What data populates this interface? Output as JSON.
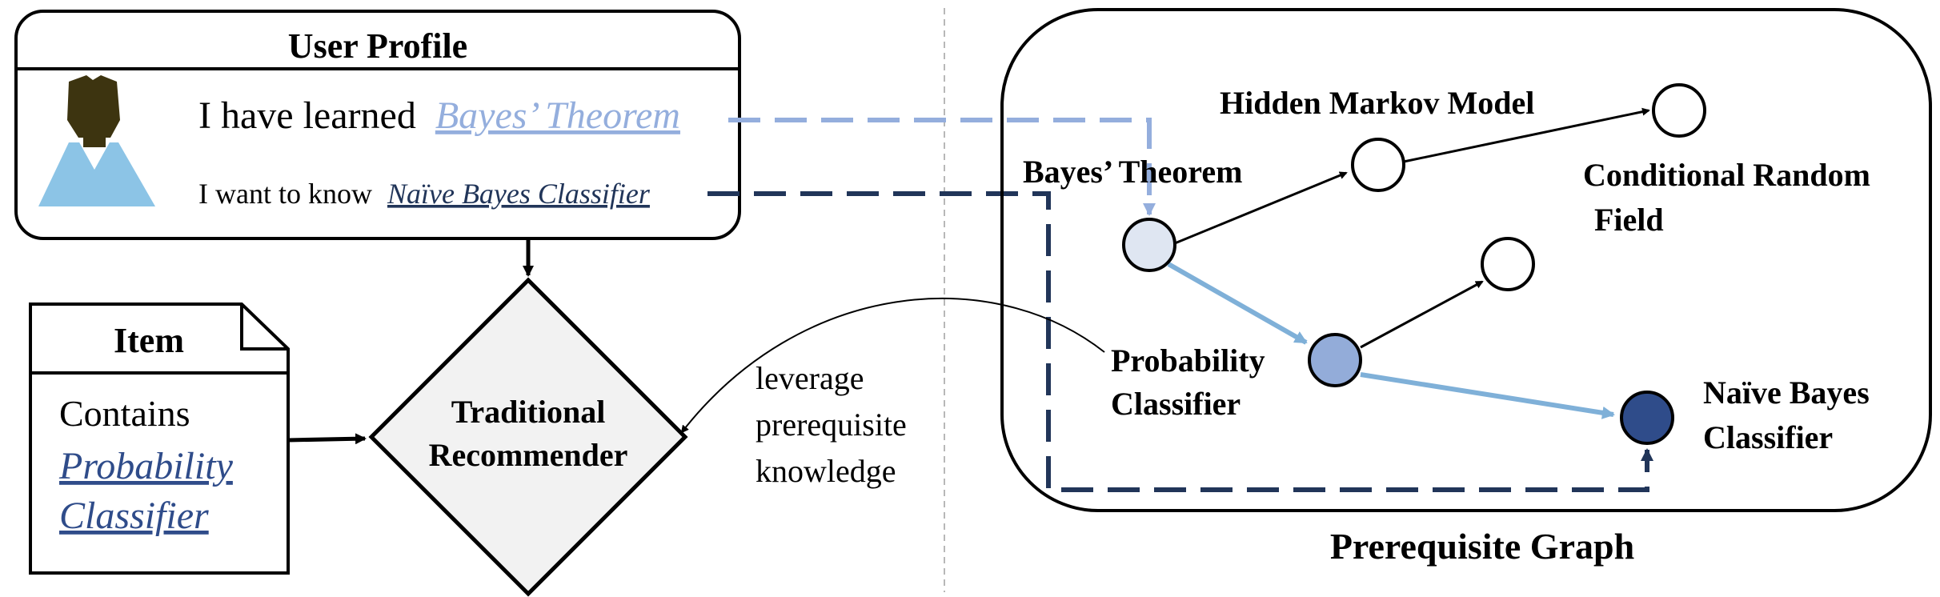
{
  "user_profile": {
    "title": "User Profile",
    "learned_prefix": "I have learned",
    "learned_concept": "Bayes’ Theorem",
    "want_prefix": "I want to know",
    "want_concept": "Naïve Bayes Classifier"
  },
  "item": {
    "title": "Item",
    "contains_label": "Contains",
    "concept_line1": "Probability",
    "concept_line2": "Classifier"
  },
  "recommender": {
    "line1": "Traditional",
    "line2": "Recommender"
  },
  "leverage": {
    "line1": "leverage",
    "line2": "prerequisite",
    "line3": "knowledge"
  },
  "graph": {
    "caption": "Prerequisite Graph",
    "nodes": {
      "bayes_theorem": "Bayes’ Theorem",
      "hmm": "Hidden Markov Model",
      "crf_line1": "Conditional Random",
      "crf_line2": "Field",
      "prob_line1": "Probability",
      "prob_line2": "Classifier",
      "nbc_line1": "Naïve Bayes",
      "nbc_line2": "Classifier"
    }
  },
  "colors": {
    "light_blue": "#94aedd",
    "mid_blue": "#93acd9",
    "pale_blue": "#dfe6f2",
    "dark_navy": "#213559",
    "node_dark": "#2f4c8a",
    "edge_blue": "#7fb0d8",
    "avatar_skin": "#3d3410",
    "avatar_body": "#8cc4e6",
    "diamond_fill": "#f2f2f2"
  }
}
